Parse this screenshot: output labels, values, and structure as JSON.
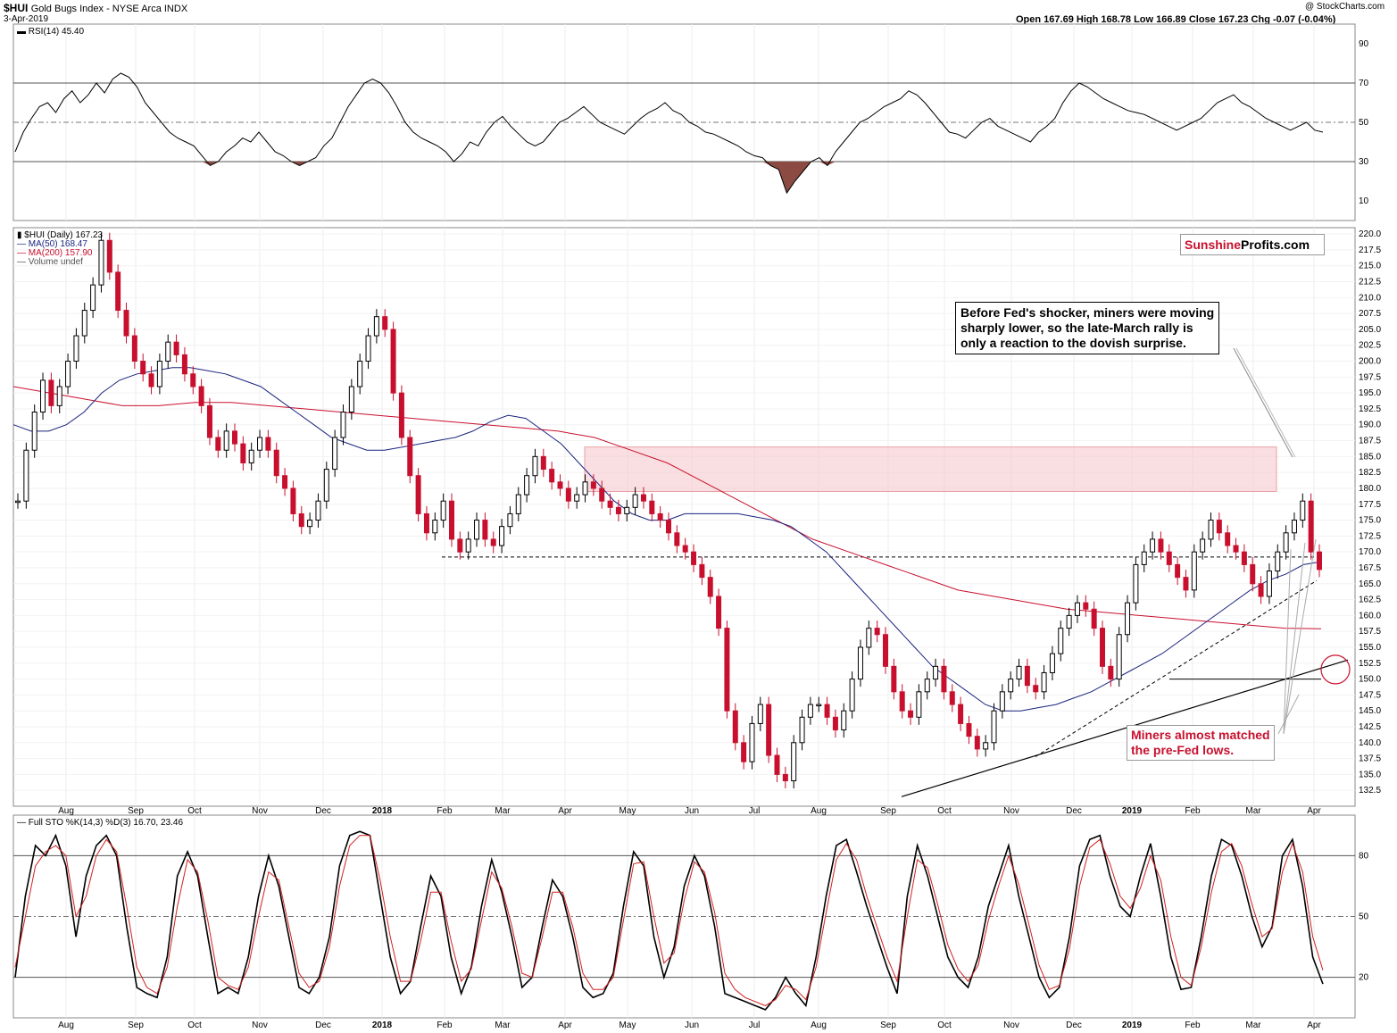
{
  "header": {
    "symbol": "$HUI",
    "name": "Gold Bugs Index - NYSE Arca INDX",
    "date": "3-Apr-2019",
    "watermark": "@ StockCharts.com",
    "ohlc_line": "Open 167.69  High 168.78  Low 166.89  Close 167.23  Chg -0.07 (-0.04%)"
  },
  "colors": {
    "up": "#000000",
    "down": "#c8102e",
    "ma50": "#1a237e",
    "ma200": "#c8102e",
    "zone": "#f4c5c8",
    "stoD": "#d02020"
  },
  "logo": {
    "part1": "Sunshine",
    "part2": "Profits.com"
  },
  "annotations": {
    "top_note": [
      "Before Fed's shocker, miners were moving",
      "sharply lower, so the late-March rally is",
      "only a reaction to the dovish surprise."
    ],
    "bottom_note": [
      "Miners almost matched",
      "the pre-Fed lows."
    ]
  },
  "chart_data": [
    {
      "type": "line",
      "panel": "rsi",
      "legend": "RSI(14) 45.40",
      "ylim": [
        0,
        100
      ],
      "yticks": [
        10,
        30,
        50,
        70,
        90
      ],
      "reference_lines": [
        30,
        50,
        70
      ],
      "values": [
        35,
        45,
        52,
        58,
        60,
        55,
        62,
        66,
        60,
        64,
        70,
        65,
        72,
        75,
        73,
        68,
        60,
        55,
        50,
        45,
        42,
        40,
        38,
        33,
        28,
        30,
        35,
        38,
        42,
        40,
        45,
        40,
        35,
        33,
        30,
        28,
        30,
        32,
        38,
        42,
        50,
        58,
        64,
        70,
        72,
        70,
        65,
        58,
        50,
        45,
        42,
        40,
        38,
        35,
        30,
        34,
        40,
        38,
        45,
        50,
        53,
        48,
        44,
        40,
        38,
        40,
        45,
        50,
        52,
        55,
        58,
        54,
        50,
        48,
        46,
        44,
        48,
        52,
        55,
        57,
        60,
        56,
        54,
        50,
        48,
        45,
        44,
        42,
        40,
        38,
        35,
        33,
        32,
        28,
        26,
        14,
        20,
        25,
        30,
        32,
        28,
        35,
        40,
        45,
        50,
        52,
        55,
        58,
        60,
        62,
        66,
        64,
        60,
        55,
        50,
        45,
        44,
        42,
        46,
        50,
        52,
        48,
        46,
        44,
        42,
        40,
        45,
        48,
        52,
        60,
        66,
        70,
        68,
        65,
        62,
        60,
        58,
        56,
        55,
        54,
        52,
        50,
        48,
        46,
        48,
        50,
        52,
        56,
        60,
        62,
        64,
        60,
        58,
        55,
        52,
        50,
        48,
        46,
        48,
        50,
        46,
        45
      ]
    },
    {
      "type": "candlestick",
      "panel": "price",
      "title": "$HUI (Daily) 167.23",
      "legend": [
        "$HUI (Daily) 167.23",
        "MA(50) 168.47",
        "MA(200) 157.90",
        "Volume undef"
      ],
      "x_ticks": [
        "Aug",
        "Sep",
        "Oct",
        "Nov",
        "Dec",
        "2018",
        "Feb",
        "Mar",
        "Apr",
        "May",
        "Jun",
        "Jul",
        "Aug",
        "Sep",
        "Oct",
        "Nov",
        "Dec",
        "2019",
        "Feb",
        "Mar",
        "Apr"
      ],
      "ylim": [
        130,
        221
      ],
      "yticks": [
        132.5,
        135.0,
        137.5,
        140.0,
        142.5,
        145.0,
        147.5,
        150.0,
        152.5,
        155.0,
        157.5,
        160.0,
        162.5,
        165.0,
        167.5,
        170.0,
        172.5,
        175.0,
        177.5,
        180.0,
        182.5,
        185.0,
        187.5,
        190.0,
        192.5,
        195.0,
        197.5,
        200.0,
        202.5,
        205.0,
        207.5,
        210.0,
        212.5,
        215.0,
        217.5,
        220.0
      ],
      "close": [
        178,
        186,
        192,
        197,
        193,
        196,
        200,
        204,
        208,
        212,
        219,
        214,
        208,
        204,
        200,
        198,
        196,
        200,
        203,
        201,
        198,
        196,
        193,
        188,
        186,
        189,
        187,
        184,
        186,
        188,
        186,
        182,
        180,
        176,
        174,
        175,
        178,
        183,
        188,
        192,
        196,
        200,
        204,
        207,
        205,
        195,
        188,
        182,
        176,
        173,
        175,
        178,
        172,
        170,
        172,
        175,
        172,
        171,
        174,
        176,
        179,
        182,
        185,
        183,
        181,
        180,
        178,
        179,
        181,
        180,
        178,
        177,
        176,
        177,
        179,
        178,
        176,
        175,
        173,
        171,
        170,
        168,
        166,
        163,
        158,
        145,
        140,
        137,
        143,
        146,
        138,
        135,
        134,
        140,
        144,
        146,
        146,
        144,
        142,
        145,
        150,
        155,
        158,
        157,
        152,
        148,
        145,
        144,
        148,
        150,
        152,
        148,
        146,
        143,
        141,
        139,
        140,
        145,
        148,
        150,
        152,
        149,
        148,
        151,
        154,
        158,
        160,
        162,
        161,
        158,
        152,
        150,
        157,
        162,
        168,
        170,
        172,
        170,
        168,
        166,
        164,
        170,
        172,
        175,
        173,
        171,
        170,
        168,
        165,
        163,
        167,
        170,
        173,
        175,
        178,
        170,
        167.23
      ],
      "ma50": [
        190,
        189,
        189,
        190,
        192,
        195,
        197,
        198,
        198.5,
        199,
        199,
        198.5,
        198,
        197,
        196,
        194,
        192,
        190,
        188,
        187,
        186,
        186,
        186.5,
        187,
        187.5,
        188,
        189,
        190.5,
        191.5,
        191,
        189,
        187,
        184,
        181,
        178,
        176,
        175,
        175,
        176,
        176,
        176,
        176,
        175.5,
        175,
        174,
        172,
        170,
        167,
        164,
        161,
        158,
        155,
        152,
        150,
        148,
        146,
        145,
        145,
        145.5,
        146,
        147,
        148,
        149.5,
        151,
        152.5,
        154,
        156,
        158,
        160,
        162,
        164,
        165.5,
        166.5,
        168,
        168.47
      ],
      "ma200": [
        196,
        195,
        194,
        193,
        193,
        193.5,
        193.5,
        193,
        192.5,
        192,
        191.5,
        191,
        190.5,
        190,
        189.5,
        189,
        188,
        186,
        184,
        181,
        178,
        175,
        172,
        170,
        168,
        166,
        164,
        163,
        162,
        161,
        160.5,
        160,
        159.5,
        159,
        158.5,
        158,
        157.9
      ],
      "reference_lines": [
        {
          "kind": "dashed",
          "value": 169.2,
          "label": "support"
        },
        {
          "kind": "solid",
          "value": 150.0,
          "label": "horizontal"
        }
      ],
      "resistance_zone": [
        179.5,
        186.5
      ]
    },
    {
      "type": "line",
      "panel": "stochastic",
      "legend": "Full STO %K(14,3) %D(3) 16.70, 23.46",
      "ylim": [
        0,
        100
      ],
      "yticks": [
        20,
        50,
        80
      ],
      "reference_lines": [
        20,
        50,
        80
      ],
      "series": [
        {
          "name": "%K",
          "values": [
            20,
            60,
            85,
            80,
            90,
            75,
            40,
            70,
            85,
            90,
            80,
            45,
            15,
            12,
            10,
            30,
            70,
            82,
            70,
            40,
            12,
            15,
            12,
            30,
            60,
            80,
            65,
            40,
            15,
            12,
            20,
            40,
            75,
            90,
            92,
            90,
            60,
            30,
            12,
            18,
            45,
            70,
            60,
            30,
            12,
            25,
            55,
            78,
            62,
            40,
            15,
            20,
            45,
            68,
            60,
            40,
            15,
            10,
            12,
            22,
            55,
            82,
            75,
            40,
            20,
            35,
            65,
            80,
            70,
            45,
            12,
            10,
            8,
            6,
            4,
            10,
            20,
            12,
            6,
            30,
            60,
            85,
            88,
            72,
            55,
            40,
            25,
            12,
            60,
            85,
            70,
            50,
            30,
            20,
            15,
            30,
            55,
            70,
            85,
            60,
            40,
            20,
            10,
            15,
            40,
            75,
            88,
            90,
            70,
            55,
            50,
            70,
            86,
            60,
            30,
            14,
            15,
            40,
            70,
            88,
            85,
            70,
            50,
            35,
            45,
            80,
            88,
            65,
            30,
            16.7
          ]
        },
        {
          "name": "%D",
          "values": [
            25,
            50,
            75,
            82,
            85,
            80,
            50,
            60,
            80,
            88,
            82,
            55,
            25,
            15,
            12,
            25,
            55,
            78,
            72,
            48,
            20,
            16,
            14,
            25,
            50,
            72,
            68,
            45,
            22,
            15,
            18,
            35,
            65,
            85,
            90,
            90,
            68,
            40,
            18,
            18,
            38,
            62,
            62,
            38,
            18,
            24,
            48,
            72,
            64,
            45,
            22,
            20,
            40,
            62,
            62,
            45,
            22,
            14,
            14,
            20,
            48,
            76,
            77,
            50,
            27,
            32,
            58,
            77,
            72,
            52,
            22,
            14,
            10,
            8,
            6,
            9,
            16,
            14,
            9,
            25,
            52,
            78,
            86,
            78,
            60,
            45,
            30,
            18,
            50,
            78,
            74,
            56,
            36,
            24,
            18,
            26,
            48,
            65,
            80,
            66,
            46,
            26,
            14,
            16,
            34,
            65,
            84,
            88,
            76,
            60,
            54,
            64,
            80,
            68,
            40,
            20,
            16,
            35,
            62,
            82,
            86,
            75,
            56,
            40,
            44,
            72,
            86,
            72,
            40,
            23.46
          ]
        }
      ]
    }
  ]
}
